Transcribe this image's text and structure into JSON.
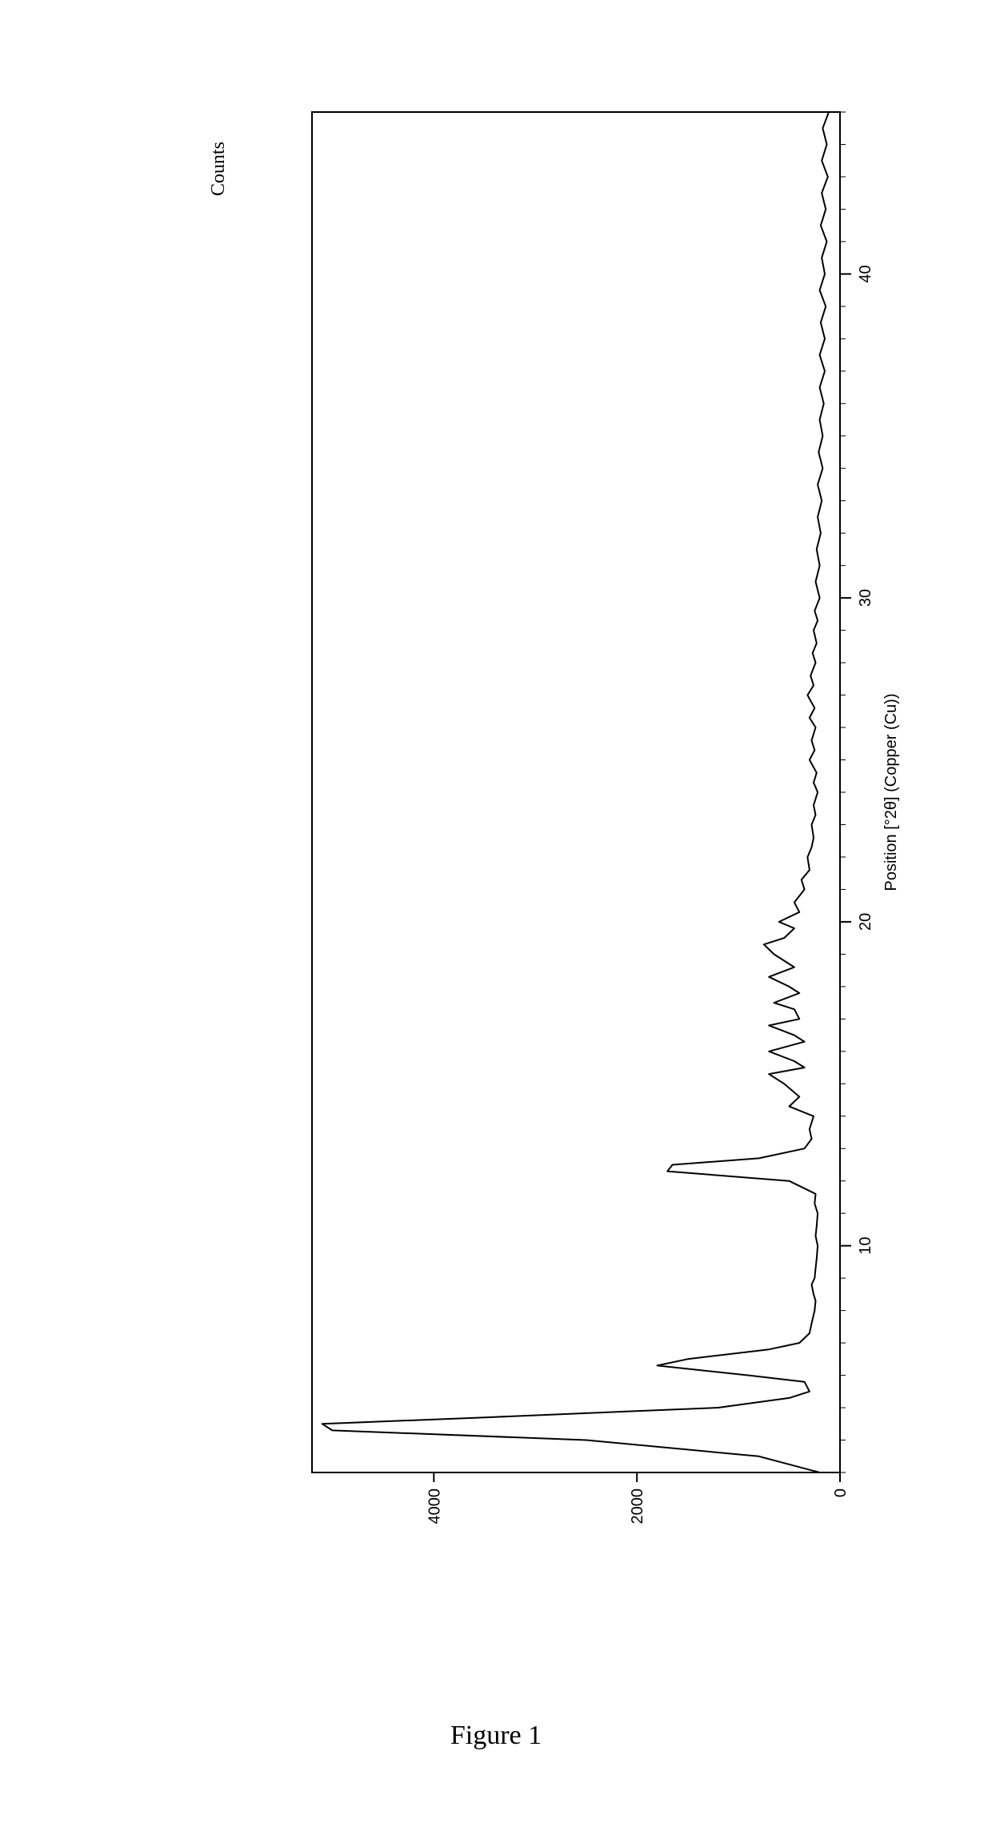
{
  "chart": {
    "type": "line",
    "title": "Counts",
    "figure_caption": "Figure 1",
    "x_axis": {
      "label": "Position [°2θ] (Copper (Cu))",
      "min": 3,
      "max": 45,
      "ticks": [
        10,
        20,
        30,
        40
      ],
      "label_fontsize": 20,
      "tick_fontsize": 20
    },
    "y_axis": {
      "label": "Counts",
      "min": 0,
      "max": 5200,
      "ticks": [
        0,
        2000,
        4000
      ],
      "label_fontsize": 22,
      "tick_fontsize": 20
    },
    "colors": {
      "line": "#000000",
      "axis": "#000000",
      "border": "#000000",
      "background": "#ffffff",
      "tick": "#000000",
      "text": "#000000"
    },
    "line_width": 2,
    "border_width": 2,
    "series": {
      "x": [
        3,
        3.5,
        4,
        4.3,
        4.5,
        4.7,
        5,
        5.3,
        5.5,
        5.8,
        6,
        6.3,
        6.5,
        6.8,
        7,
        7.3,
        7.6,
        8,
        8.3,
        8.5,
        8.8,
        9,
        9.3,
        9.6,
        10,
        10.3,
        10.6,
        11,
        11.3,
        11.6,
        12,
        12.3,
        12.5,
        12.7,
        13,
        13.3,
        13.6,
        14,
        14.3,
        14.6,
        15,
        15.3,
        15.5,
        15.7,
        16,
        16.3,
        16.5,
        16.8,
        17,
        17.3,
        17.5,
        17.8,
        18,
        18.3,
        18.6,
        19,
        19.3,
        19.5,
        19.8,
        20,
        20.3,
        20.6,
        21,
        21.3,
        21.6,
        22,
        22.3,
        22.6,
        23,
        23.3,
        23.6,
        24,
        24.3,
        24.6,
        25,
        25.3,
        25.6,
        26,
        26.3,
        26.6,
        27,
        27.3,
        27.6,
        28,
        28.3,
        28.6,
        29,
        29.3,
        29.6,
        30,
        30.5,
        31,
        31.5,
        32,
        32.5,
        33,
        33.5,
        34,
        34.5,
        35,
        35.5,
        36,
        36.5,
        37,
        37.5,
        38,
        38.5,
        39,
        39.5,
        40,
        40.5,
        41,
        41.5,
        42,
        42.5,
        43,
        43.5,
        44,
        44.5,
        45
      ],
      "y": [
        200,
        800,
        2500,
        5000,
        5100,
        3500,
        1200,
        500,
        300,
        350,
        900,
        1800,
        1500,
        700,
        400,
        300,
        280,
        250,
        240,
        260,
        280,
        250,
        240,
        230,
        220,
        240,
        230,
        220,
        250,
        240,
        500,
        1700,
        1650,
        800,
        350,
        280,
        300,
        260,
        500,
        400,
        550,
        700,
        350,
        450,
        700,
        350,
        450,
        700,
        400,
        450,
        650,
        400,
        500,
        700,
        450,
        650,
        750,
        550,
        450,
        600,
        400,
        450,
        350,
        380,
        300,
        320,
        280,
        260,
        280,
        240,
        260,
        220,
        260,
        230,
        300,
        250,
        280,
        240,
        300,
        250,
        320,
        260,
        290,
        240,
        270,
        230,
        260,
        220,
        250,
        200,
        240,
        200,
        230,
        190,
        220,
        180,
        220,
        170,
        210,
        170,
        200,
        160,
        200,
        150,
        200,
        150,
        190,
        140,
        200,
        150,
        180,
        130,
        190,
        140,
        180,
        120,
        180,
        130,
        170,
        110
      ]
    }
  }
}
